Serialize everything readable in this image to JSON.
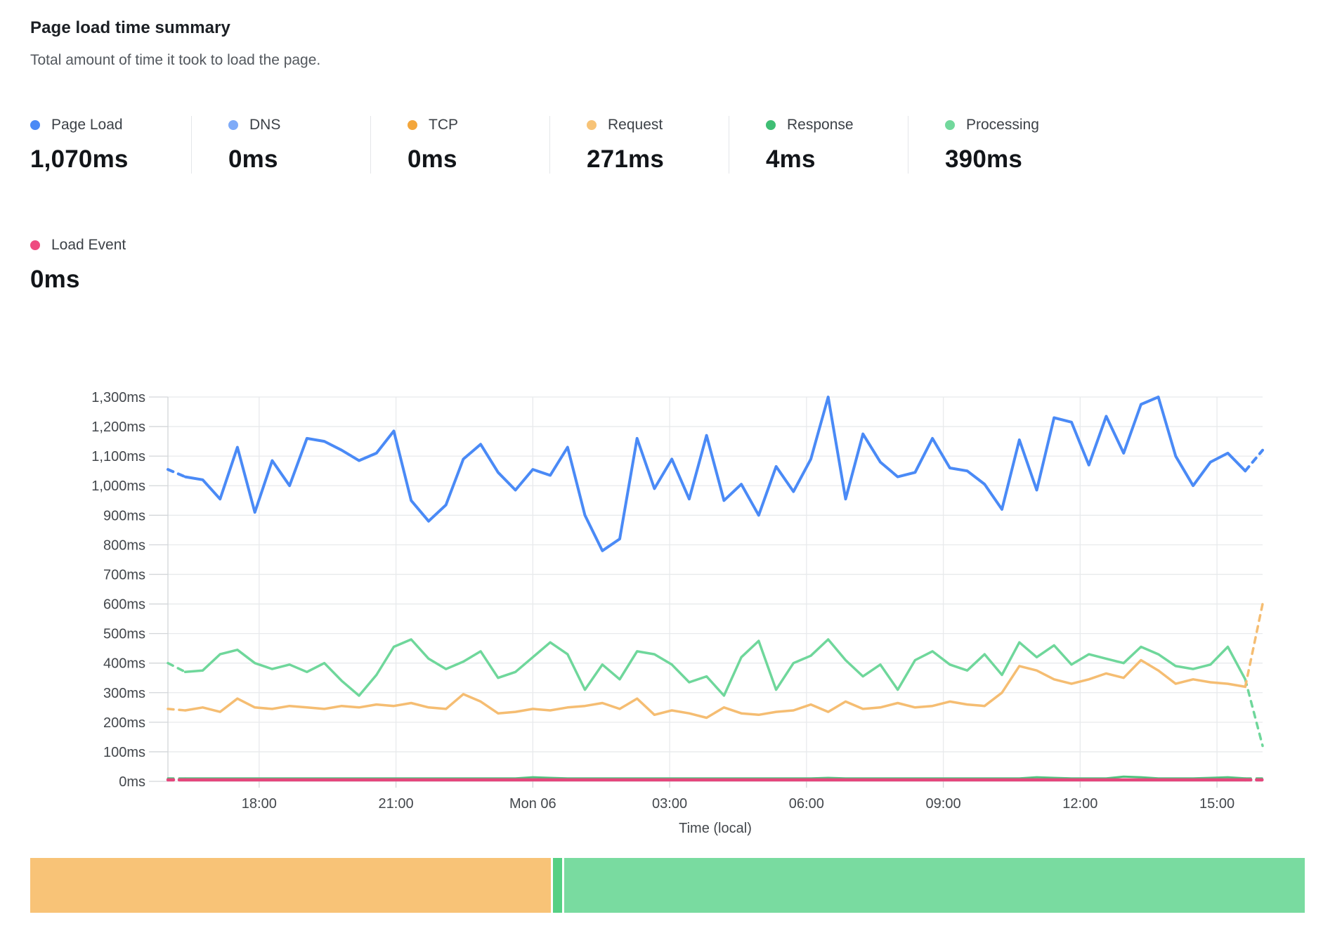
{
  "header": {
    "title": "Page load time summary",
    "subtitle": "Total amount of time it took to load the page."
  },
  "metrics": [
    {
      "id": "page-load",
      "label": "Page Load",
      "value": "1,070ms",
      "color": "#4a8af6"
    },
    {
      "id": "dns",
      "label": "DNS",
      "value": "0ms",
      "color": "#7fabf8"
    },
    {
      "id": "tcp",
      "label": "TCP",
      "value": "0ms",
      "color": "#f3a63b"
    },
    {
      "id": "request",
      "label": "Request",
      "value": "271ms",
      "color": "#f7c377"
    },
    {
      "id": "response",
      "label": "Response",
      "value": "4ms",
      "color": "#3fbe74"
    },
    {
      "id": "processing",
      "label": "Processing",
      "value": "390ms",
      "color": "#72d89c"
    },
    {
      "id": "load-event",
      "label": "Load Event",
      "value": "0ms",
      "color": "#ee4b80"
    }
  ],
  "chart_data": {
    "type": "line",
    "title": "Page load time summary",
    "xlabel": "Time (local)",
    "ylabel": "",
    "ylim": [
      0,
      1300
    ],
    "y_tick_step": 100,
    "y_tick_labels": [
      "0ms",
      "100ms",
      "200ms",
      "300ms",
      "400ms",
      "500ms",
      "600ms",
      "700ms",
      "800ms",
      "900ms",
      "1,000ms",
      "1,100ms",
      "1,200ms",
      "1,300ms"
    ],
    "x_span_hours": 24,
    "x_tick_hours": [
      2,
      5,
      8,
      11,
      14,
      17,
      20,
      23
    ],
    "x_tick_labels": [
      "18:00",
      "21:00",
      "Mon 06",
      "03:00",
      "06:00",
      "09:00",
      "12:00",
      "15:00"
    ],
    "grid": true,
    "legend_position": "top-cards",
    "series": [
      {
        "name": "Processing",
        "color": "#6fd79b",
        "width": 3.5,
        "lead_dash": true,
        "tail_dash": true,
        "values": [
          400,
          370,
          375,
          430,
          445,
          400,
          380,
          395,
          370,
          400,
          340,
          290,
          360,
          455,
          480,
          415,
          380,
          405,
          440,
          350,
          370,
          420,
          470,
          430,
          310,
          395,
          345,
          440,
          430,
          395,
          335,
          355,
          290,
          420,
          475,
          310,
          400,
          425,
          480,
          410,
          355,
          395,
          310,
          410,
          440,
          395,
          375,
          430,
          360,
          470,
          420,
          460,
          395,
          430,
          415,
          400,
          455,
          430,
          390,
          380,
          395,
          455,
          345,
          120
        ]
      },
      {
        "name": "Request",
        "color": "#f5bd72",
        "width": 3.5,
        "lead_dash": true,
        "tail_dash": true,
        "values": [
          245,
          240,
          250,
          235,
          280,
          250,
          245,
          255,
          250,
          245,
          255,
          250,
          260,
          255,
          265,
          250,
          245,
          295,
          270,
          230,
          235,
          245,
          240,
          250,
          255,
          265,
          245,
          280,
          225,
          240,
          230,
          215,
          250,
          230,
          225,
          235,
          240,
          260,
          235,
          270,
          245,
          250,
          265,
          250,
          255,
          270,
          260,
          255,
          300,
          390,
          375,
          345,
          330,
          345,
          365,
          350,
          410,
          375,
          330,
          345,
          335,
          330,
          320,
          600
        ]
      },
      {
        "name": "Response",
        "color": "#4fc47e",
        "width": 3,
        "lead_dash": true,
        "tail_dash": true,
        "values": [
          10,
          10,
          10,
          10,
          10,
          10,
          10,
          10,
          10,
          10,
          10,
          10,
          10,
          10,
          10,
          10,
          10,
          10,
          10,
          10,
          10,
          14,
          12,
          10,
          10,
          10,
          10,
          10,
          10,
          10,
          10,
          10,
          10,
          10,
          10,
          10,
          10,
          10,
          12,
          10,
          10,
          10,
          10,
          10,
          10,
          10,
          10,
          10,
          10,
          10,
          14,
          12,
          10,
          10,
          10,
          16,
          14,
          10,
          10,
          10,
          12,
          14,
          10,
          10
        ]
      },
      {
        "name": "DNS",
        "color": "#7fabf8",
        "width": 3,
        "constant": 0,
        "render": false
      },
      {
        "name": "TCP",
        "color": "#f3a63b",
        "width": 3,
        "constant": 0,
        "render": false
      },
      {
        "name": "Page Load",
        "color": "#4a8af6",
        "width": 4,
        "lead_dash": true,
        "tail_dash": true,
        "values": [
          1055,
          1030,
          1020,
          955,
          1130,
          910,
          1085,
          1000,
          1160,
          1150,
          1120,
          1085,
          1110,
          1185,
          950,
          880,
          935,
          1090,
          1140,
          1045,
          985,
          1055,
          1035,
          1130,
          900,
          780,
          820,
          1160,
          990,
          1090,
          955,
          1170,
          950,
          1005,
          900,
          1065,
          980,
          1090,
          1300,
          955,
          1175,
          1080,
          1030,
          1045,
          1160,
          1060,
          1050,
          1005,
          920,
          1155,
          985,
          1230,
          1215,
          1070,
          1235,
          1110,
          1275,
          1300,
          1100,
          1000,
          1080,
          1110,
          1050,
          1120
        ]
      },
      {
        "name": "Load Event",
        "color": "#e5467c",
        "width": 4.5,
        "lead_dash": true,
        "tail_dash": true,
        "constant": 5
      }
    ]
  },
  "footer_bar": {
    "segments": [
      {
        "name": "request-share",
        "color": "#f8c377",
        "fraction": 0.4085
      },
      {
        "name": "divider-share",
        "color": "#56d084",
        "fraction": 0.0072
      },
      {
        "name": "processing-share",
        "color": "#79dba0",
        "fraction": 0.581
      }
    ]
  }
}
